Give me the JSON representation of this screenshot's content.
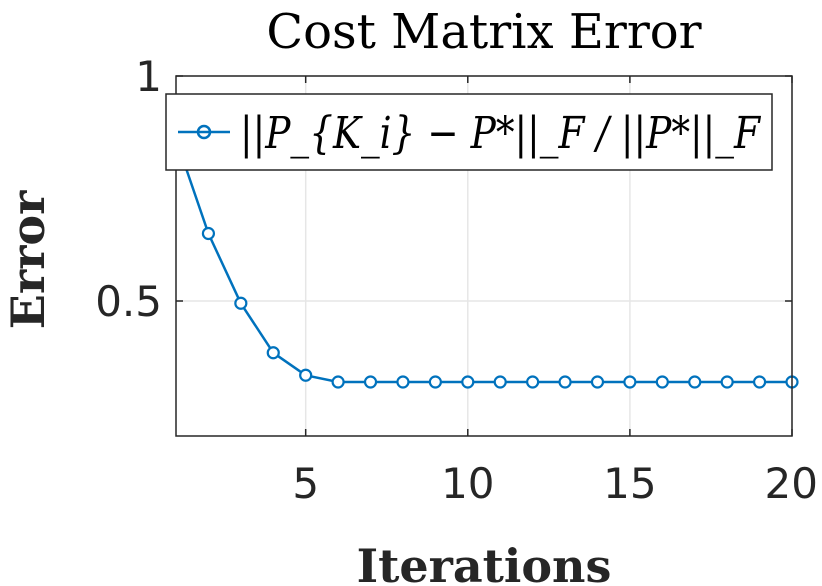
{
  "chart_data": {
    "type": "line",
    "title": "Cost Matrix Error",
    "xlabel": "Iterations",
    "ylabel": "Error",
    "xlim": [
      1,
      20
    ],
    "ylim": [
      0.2,
      1
    ],
    "xticks": [
      5,
      10,
      15,
      20
    ],
    "xtick_labels": [
      "5",
      "10",
      "15",
      "20"
    ],
    "yticks": [
      0.5,
      1
    ],
    "ytick_labels": [
      "0.5",
      "1"
    ],
    "grid": true,
    "legend_position": "top",
    "series": [
      {
        "name": "||P_{K_i} − P*||_F / ||P*||_F",
        "color": "#0072BD",
        "marker": "circle",
        "x": [
          1,
          2,
          3,
          4,
          5,
          6,
          7,
          8,
          9,
          10,
          11,
          12,
          13,
          14,
          15,
          16,
          17,
          18,
          19,
          20
        ],
        "y": [
          0.86,
          0.65,
          0.495,
          0.385,
          0.335,
          0.32,
          0.32,
          0.32,
          0.32,
          0.32,
          0.32,
          0.32,
          0.32,
          0.32,
          0.32,
          0.32,
          0.32,
          0.32,
          0.32,
          0.32
        ]
      }
    ]
  }
}
